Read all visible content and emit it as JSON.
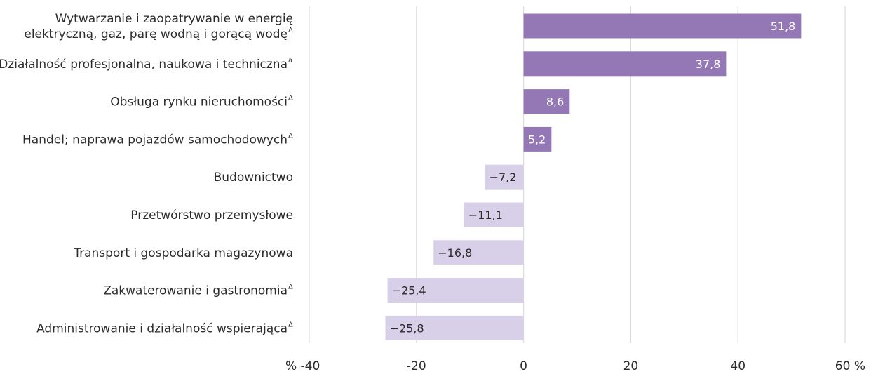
{
  "chart_data": {
    "type": "bar",
    "orientation": "horizontal",
    "title": "",
    "xlabel": "",
    "ylabel": "",
    "xlim": [
      -40,
      60
    ],
    "x_ticks": [
      -40,
      -20,
      0,
      20,
      40,
      60
    ],
    "x_tick_labels": [
      "% -40",
      "-20",
      "0",
      "20",
      "40",
      "60 %"
    ],
    "grid": "vertical",
    "legend": "none",
    "colors": {
      "positive": "#9478b6",
      "negative": "#d8d0e8",
      "grid": "#dcdcdc"
    },
    "categories": [
      {
        "lines": [
          "Wytwarzanie i zaopatrywanie w energię",
          "elektryczną, gaz, parę wodną i gorącą wodę"
        ],
        "note": "Δ",
        "value": 51.8,
        "value_label": "51,8"
      },
      {
        "lines": [
          "Działalność profesjonalna, naukowa i techniczna"
        ],
        "note": "a",
        "value": 37.8,
        "value_label": "37,8"
      },
      {
        "lines": [
          "Obsługa rynku nieruchomości"
        ],
        "note": "Δ",
        "value": 8.6,
        "value_label": "8,6"
      },
      {
        "lines": [
          "Handel; naprawa pojazdów samochodowych"
        ],
        "note": "Δ",
        "value": 5.2,
        "value_label": "5,2"
      },
      {
        "lines": [
          "Budownictwo"
        ],
        "note": "",
        "value": -7.2,
        "value_label": "−7,2"
      },
      {
        "lines": [
          "Przetwórstwo przemysłowe"
        ],
        "note": "",
        "value": -11.1,
        "value_label": "−11,1"
      },
      {
        "lines": [
          "Transport i gospodarka magazynowa"
        ],
        "note": "",
        "value": -16.8,
        "value_label": "−16,8"
      },
      {
        "lines": [
          "Zakwaterowanie i gastronomia"
        ],
        "note": "Δ",
        "value": -25.4,
        "value_label": "−25,4"
      },
      {
        "lines": [
          "Administrowanie i działalność wspierająca"
        ],
        "note": "Δ",
        "value": -25.8,
        "value_label": "−25,8"
      }
    ]
  }
}
